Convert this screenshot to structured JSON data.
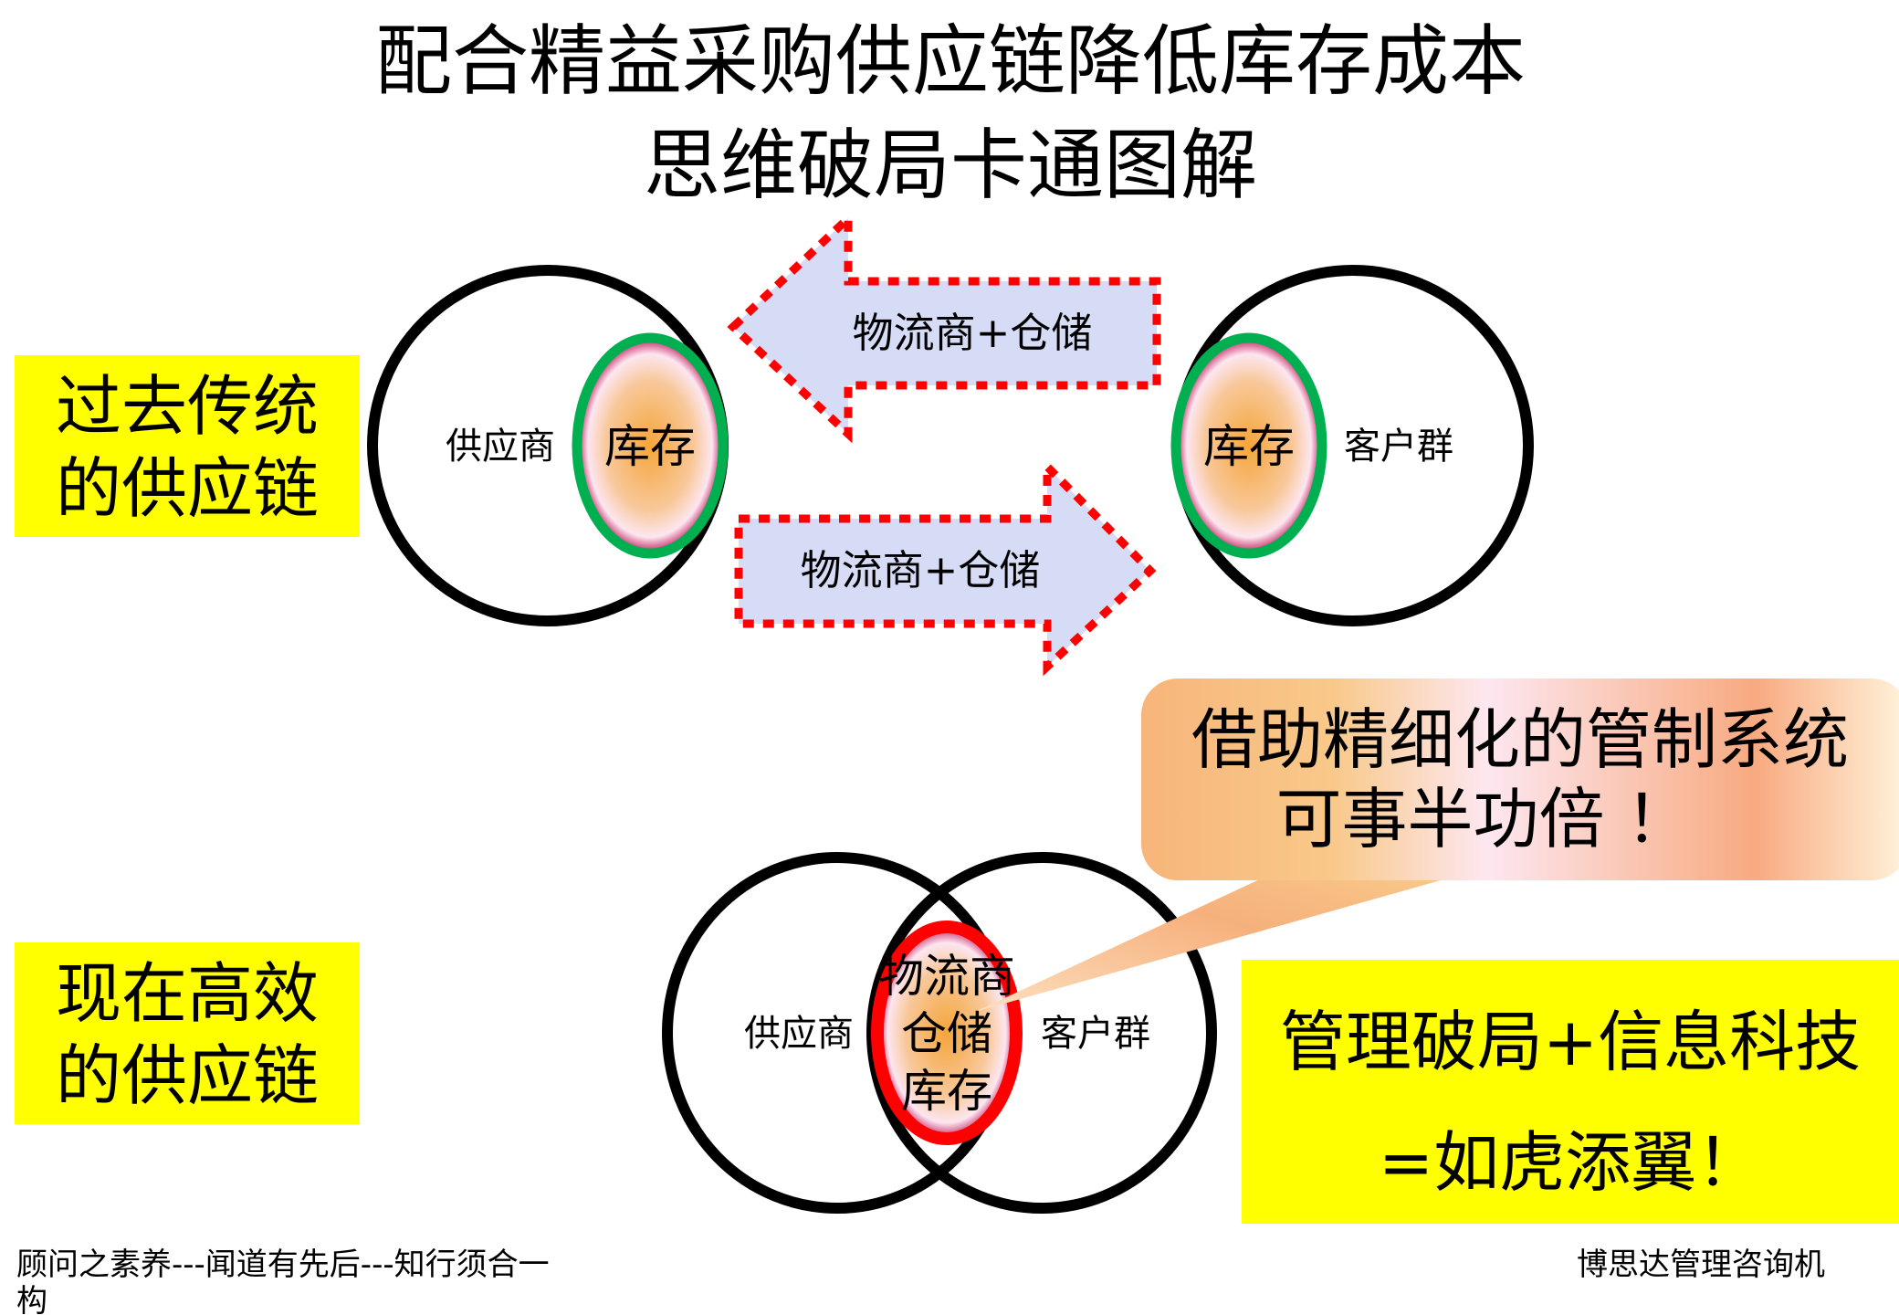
{
  "title": {
    "line1": "配合精益采购供应链降低库存成本",
    "line2": "思维破局卡通图解"
  },
  "past": {
    "label_line1": "过去传统",
    "label_line2": "的供应链",
    "supplier": "供应商",
    "customer": "客户群",
    "inventory_left": "库存",
    "inventory_right": "库存",
    "arrow_top": "物流商+仓储",
    "arrow_bottom": "物流商+仓储"
  },
  "present": {
    "label_line1": "现在高效",
    "label_line2": "的供应链",
    "supplier": "供应商",
    "customer": "客户群",
    "center_line1": "物流商",
    "center_line2": "仓储",
    "center_line3": "库存"
  },
  "callout": {
    "line1": "借助精细化的管制系统",
    "line2": "可事半功倍 ！"
  },
  "highlight": {
    "line1": "管理破局+信息科技",
    "line2": "=如虎添翼！"
  },
  "footer": {
    "left_line1": "顾问之素养---闻道有先后---知行须合一",
    "left_line2": "构",
    "right": "博思达管理咨询机"
  },
  "colors": {
    "highlight_yellow": "#ffff00",
    "ring_green": "#00b050",
    "ring_red": "#ff0000",
    "arrow_fill": "#d6dcf5",
    "arrow_border": "#ff0000"
  }
}
